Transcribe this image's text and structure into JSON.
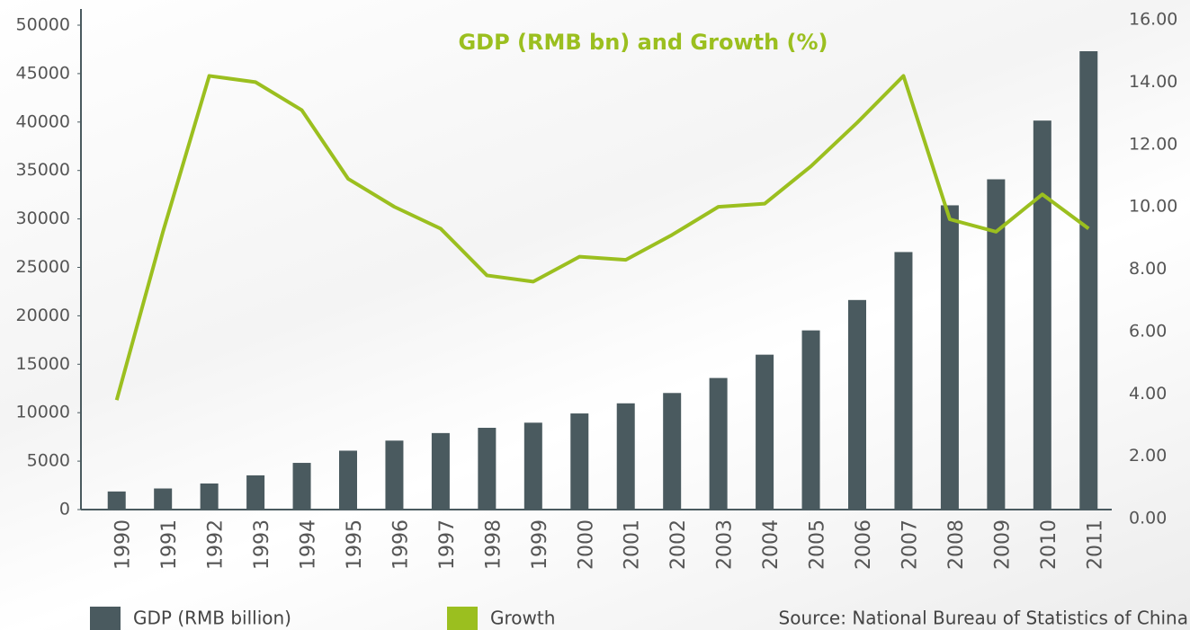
{
  "chart_data": {
    "type": "bar",
    "title": "GDP (RMB bn)  and Growth (%)",
    "source": "Source: National Bureau of Statistics of China",
    "categories": [
      "1990",
      "1991",
      "1992",
      "1993",
      "1994",
      "1995",
      "1996",
      "1997",
      "1998",
      "1999",
      "2000",
      "2001",
      "2002",
      "2003",
      "2004",
      "2005",
      "2006",
      "2007",
      "2008",
      "2009",
      "2010",
      "2011"
    ],
    "series": [
      {
        "name": "GDP (RMB billion)",
        "color": "#4a5a5f",
        "type": "bar",
        "values": [
          1867,
          2178,
          2692,
          3533,
          4820,
          6079,
          7118,
          7897,
          8440,
          8968,
          9921,
          10966,
          12033,
          13582,
          15988,
          18494,
          21631,
          26581,
          31405,
          34090,
          40151,
          47310
        ]
      },
      {
        "name": "Growth",
        "color": "#9bbf1f",
        "type": "line",
        "axis": "y2",
        "values": [
          3.8,
          9.2,
          14.2,
          14.0,
          13.1,
          10.9,
          10.0,
          9.3,
          7.8,
          7.6,
          8.4,
          8.3,
          9.1,
          10.0,
          10.1,
          11.3,
          12.7,
          14.2,
          9.6,
          9.2,
          10.4,
          9.3
        ]
      }
    ],
    "ylim": [
      0,
      50000
    ],
    "yticks": [
      0,
      5000,
      10000,
      15000,
      20000,
      25000,
      30000,
      35000,
      40000,
      45000,
      50000
    ],
    "y2lim": [
      0,
      16
    ],
    "y2ticks": [
      {
        "value": 0,
        "label": "0.00"
      },
      {
        "value": 2,
        "label": "2.00"
      },
      {
        "value": 4,
        "label": "4.00"
      },
      {
        "value": 6,
        "label": "6.00"
      },
      {
        "value": 8,
        "label": "8.00"
      },
      {
        "value": 10,
        "label": "10.00"
      },
      {
        "value": 12,
        "label": "12.00"
      },
      {
        "value": 14,
        "label": "14.00"
      },
      {
        "value": 16,
        "label": "16.00"
      }
    ],
    "legend": "bottom"
  }
}
